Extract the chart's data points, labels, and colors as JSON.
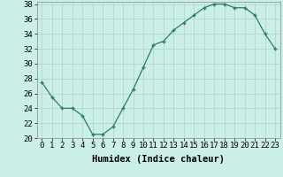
{
  "x": [
    0,
    1,
    2,
    3,
    4,
    5,
    6,
    7,
    8,
    9,
    10,
    11,
    12,
    13,
    14,
    15,
    16,
    17,
    18,
    19,
    20,
    21,
    22,
    23
  ],
  "y": [
    27.5,
    25.5,
    24.0,
    24.0,
    23.0,
    20.5,
    20.5,
    21.5,
    24.0,
    26.5,
    29.5,
    32.5,
    33.0,
    34.5,
    35.5,
    36.5,
    37.5,
    38.0,
    38.0,
    37.5,
    37.5,
    36.5,
    34.0,
    32.0
  ],
  "xlabel": "Humidex (Indice chaleur)",
  "ylim": [
    20,
    38
  ],
  "xlim": [
    -0.5,
    23.5
  ],
  "yticks": [
    20,
    22,
    24,
    26,
    28,
    30,
    32,
    34,
    36,
    38
  ],
  "xticks": [
    0,
    1,
    2,
    3,
    4,
    5,
    6,
    7,
    8,
    9,
    10,
    11,
    12,
    13,
    14,
    15,
    16,
    17,
    18,
    19,
    20,
    21,
    22,
    23
  ],
  "line_color": "#2e7b6e",
  "bg_color": "#cceee8",
  "grid_color": "#b0d8d0",
  "label_fontsize": 7.5,
  "tick_fontsize": 6.5
}
